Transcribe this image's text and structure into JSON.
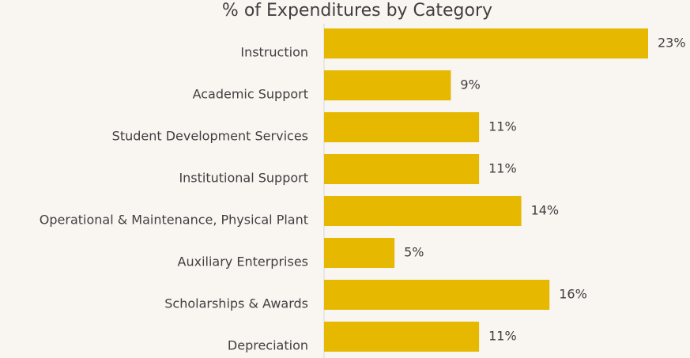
{
  "chart_data": {
    "type": "bar",
    "orientation": "horizontal",
    "title": "% of Expenditures by Category",
    "categories": [
      "Instruction",
      "Academic Support",
      "Student Development Services",
      "Institutional Support",
      "Operational & Maintenance, Physical Plant",
      "Auxiliary Enterprises",
      "Scholarships & Awards",
      "Depreciation"
    ],
    "values": [
      23,
      9,
      11,
      11,
      14,
      5,
      16,
      11
    ],
    "value_labels": [
      "23%",
      "9%",
      "11%",
      "11%",
      "14%",
      "5%",
      "16%",
      "11%"
    ],
    "color": "#e6b800",
    "xlim": [
      0,
      23
    ]
  }
}
